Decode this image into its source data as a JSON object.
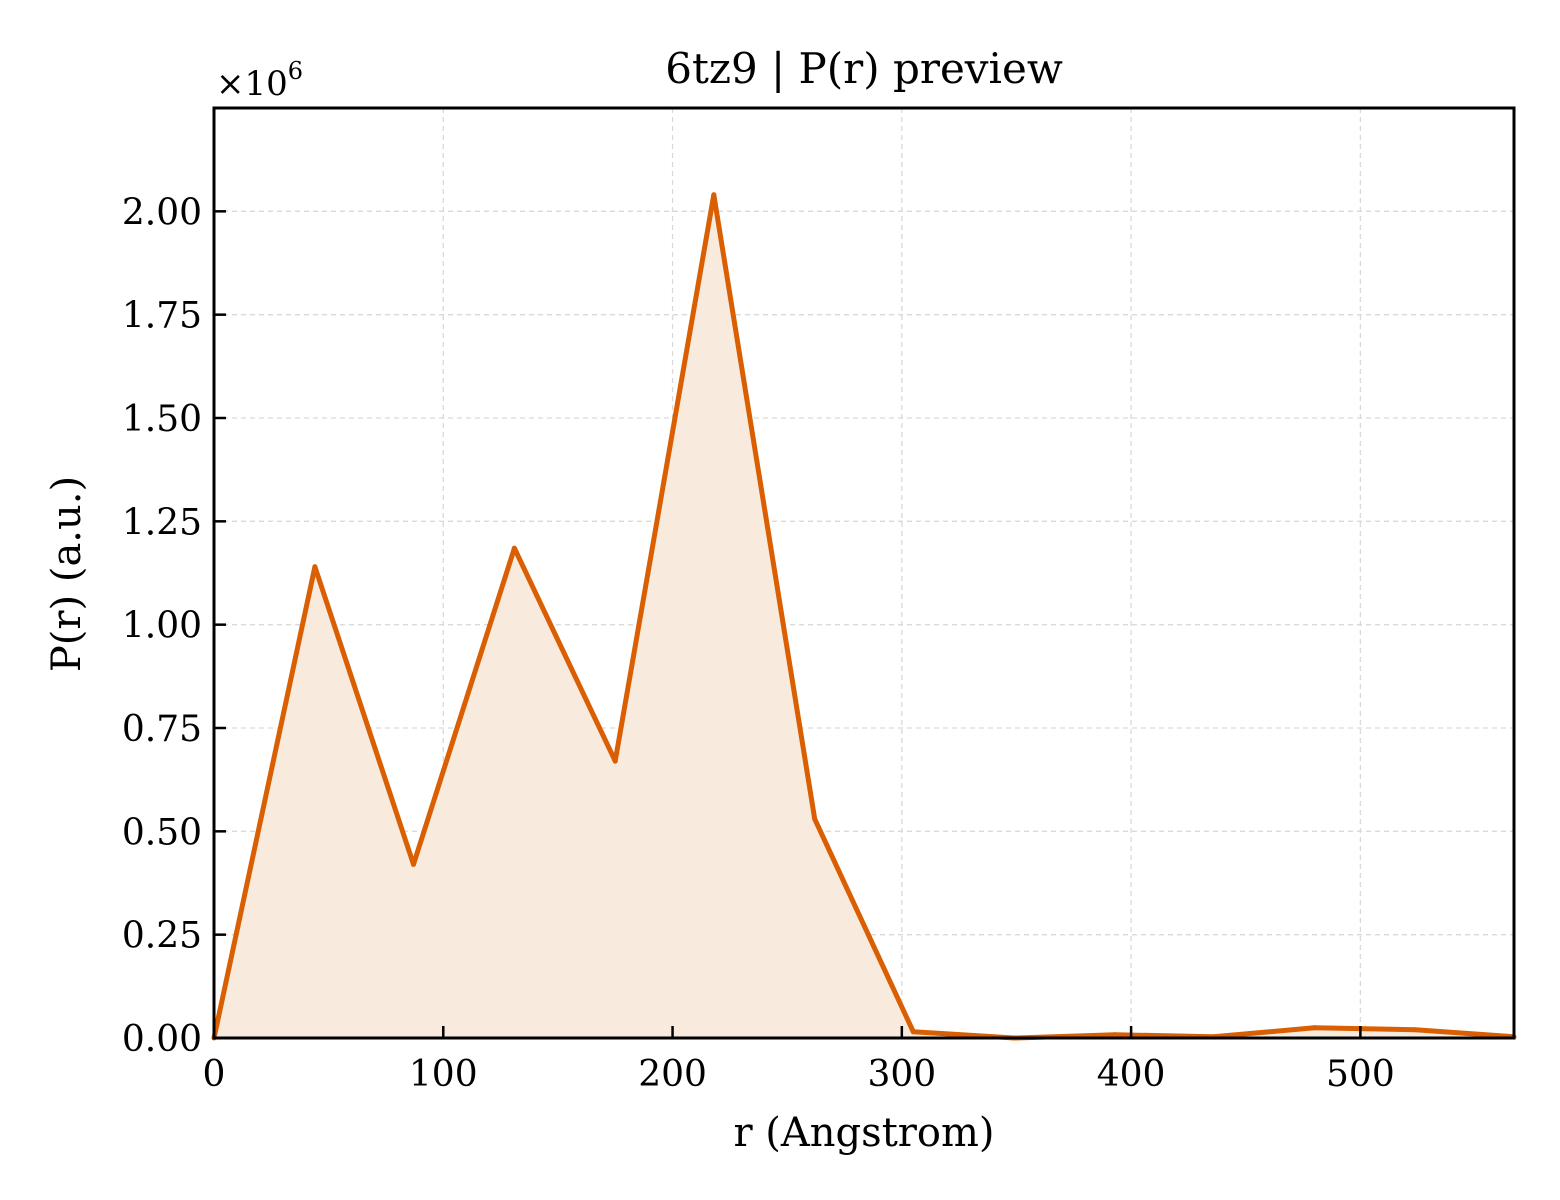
{
  "chart_data": {
    "type": "area",
    "title": "6tz9 | P(r) preview",
    "xlabel": "r (Angstrom)",
    "ylabel": "P(r) (a.u.)",
    "y_multiplier_label": "×10",
    "y_multiplier_exp": "6",
    "xlim": [
      0,
      567
    ],
    "ylim": [
      0,
      2.25
    ],
    "x_ticks": [
      0,
      100,
      200,
      300,
      400,
      500
    ],
    "x_tick_labels": [
      "0",
      "100",
      "200",
      "300",
      "400",
      "500"
    ],
    "y_ticks": [
      0,
      0.25,
      0.5,
      0.75,
      1.0,
      1.25,
      1.5,
      1.75,
      2.0
    ],
    "y_tick_labels": [
      "0.00",
      "0.25",
      "0.50",
      "0.75",
      "1.00",
      "1.25",
      "1.50",
      "1.75",
      "2.00"
    ],
    "grid": true,
    "series": [
      {
        "color": "#d95f02",
        "fill_color": "#f9eade",
        "x": [
          0,
          44,
          87,
          131,
          175,
          218,
          262,
          305,
          349,
          393,
          436,
          480,
          524,
          567
        ],
        "y": [
          0.0,
          1.14,
          0.42,
          1.185,
          0.67,
          2.04,
          0.53,
          0.015,
          0.0,
          0.008,
          0.003,
          0.025,
          0.02,
          0.003
        ]
      }
    ]
  }
}
